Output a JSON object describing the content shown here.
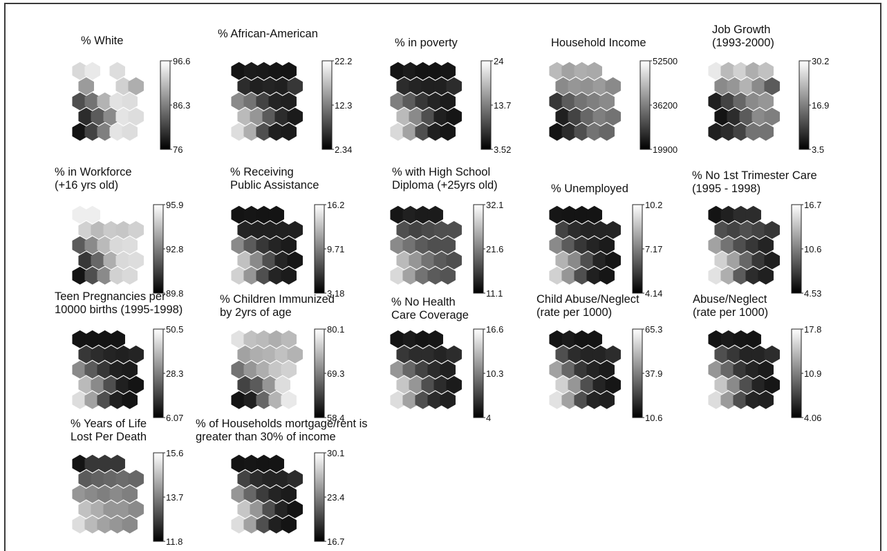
{
  "chart_data": [
    {
      "type": "heatmap",
      "title": "% White",
      "colorbar": {
        "max": "96.6",
        "mid": "86.3",
        "min": "76"
      },
      "values": [
        [
          0.88,
          0.95,
          null,
          0.9,
          null
        ],
        [
          0.62,
          null,
          null,
          0.85,
          0.7
        ],
        [
          0.3,
          0.45,
          0.72,
          0.92,
          0.9
        ],
        [
          0.15,
          0.35,
          0.55,
          0.93,
          0.9
        ],
        [
          0.05,
          0.25,
          0.5,
          0.93,
          0.9
        ]
      ]
    },
    {
      "type": "heatmap",
      "title": "% African-American",
      "colorbar": {
        "max": "22.2",
        "mid": "12.3",
        "min": "2.34"
      },
      "values": [
        [
          0.05,
          0.08,
          0.07,
          0.06,
          0.05
        ],
        [
          0.15,
          0.1,
          0.12,
          0.1,
          0.2
        ],
        [
          0.55,
          0.45,
          0.25,
          0.12,
          0.1
        ],
        [
          0.75,
          0.6,
          0.35,
          0.15,
          0.08
        ],
        [
          0.9,
          0.7,
          0.3,
          0.1,
          0.08
        ]
      ]
    },
    {
      "type": "heatmap",
      "title": "% in poverty",
      "colorbar": {
        "max": "24",
        "mid": "13.7",
        "min": "3.52"
      },
      "values": [
        [
          0.05,
          0.08,
          0.05,
          0.05,
          0.06
        ],
        [
          0.15,
          0.12,
          0.1,
          0.1,
          0.15
        ],
        [
          0.5,
          0.35,
          0.2,
          0.12,
          0.08
        ],
        [
          0.75,
          0.55,
          0.3,
          0.1,
          0.06
        ],
        [
          0.88,
          0.65,
          0.3,
          0.1,
          0.06
        ]
      ]
    },
    {
      "type": "heatmap",
      "title": "Household Income",
      "colorbar": {
        "max": "52500",
        "mid": "36200",
        "min": "19900"
      },
      "values": [
        [
          0.75,
          0.65,
          0.7,
          0.68,
          null
        ],
        [
          0.55,
          0.6,
          0.58,
          0.62,
          0.55
        ],
        [
          0.2,
          0.35,
          0.45,
          0.5,
          0.55
        ],
        [
          0.1,
          0.25,
          0.4,
          0.5,
          0.45
        ],
        [
          0.05,
          0.15,
          0.3,
          0.45,
          0.4
        ]
      ]
    },
    {
      "type": "heatmap",
      "title": "Job Growth\n(1993-2000)",
      "colorbar": {
        "max": "30.2",
        "mid": "16.9",
        "min": "3.5"
      },
      "values": [
        [
          0.95,
          0.75,
          0.85,
          0.7,
          0.78
        ],
        [
          0.55,
          0.6,
          0.72,
          0.55,
          0.35
        ],
        [
          0.1,
          0.25,
          0.4,
          0.55,
          0.6
        ],
        [
          0.05,
          0.15,
          0.35,
          0.55,
          0.5
        ],
        [
          0.1,
          0.15,
          0.25,
          0.45,
          0.45
        ]
      ]
    },
    {
      "type": "heatmap",
      "title": "% in Workforce\n(+16 yrs old)",
      "colorbar": {
        "max": "95.9",
        "mid": "92.8",
        "min": "89.8"
      },
      "values": [
        [
          0.97,
          0.97,
          null,
          null,
          null
        ],
        [
          0.85,
          0.75,
          0.82,
          0.8,
          0.85
        ],
        [
          0.35,
          0.55,
          0.75,
          0.88,
          0.9
        ],
        [
          0.2,
          0.4,
          0.7,
          0.88,
          0.9
        ],
        [
          0.05,
          0.3,
          0.55,
          0.85,
          0.88
        ]
      ]
    },
    {
      "type": "heatmap",
      "title": "% Receiving\nPublic Assistance",
      "colorbar": {
        "max": "16.2",
        "mid": "9.71",
        "min": "3.18"
      },
      "values": [
        [
          0.05,
          0.06,
          0.05,
          0.05,
          null
        ],
        [
          0.12,
          0.1,
          0.1,
          0.1,
          0.1
        ],
        [
          0.55,
          0.35,
          0.2,
          0.12,
          0.08
        ],
        [
          0.78,
          0.55,
          0.3,
          0.12,
          0.06
        ],
        [
          0.85,
          0.6,
          0.3,
          0.12,
          0.08
        ]
      ]
    },
    {
      "type": "heatmap",
      "title": "% with High School\nDiploma (+25yrs old)",
      "colorbar": {
        "max": "32.1",
        "mid": "21.6",
        "min": "11.1"
      },
      "values": [
        [
          0.06,
          0.1,
          0.08,
          0.08,
          null
        ],
        [
          0.3,
          0.25,
          0.28,
          0.3,
          0.3
        ],
        [
          0.55,
          0.45,
          0.35,
          0.3,
          0.3
        ],
        [
          0.75,
          0.6,
          0.45,
          0.35,
          0.3
        ],
        [
          0.88,
          0.65,
          0.45,
          0.35,
          0.32
        ]
      ]
    },
    {
      "type": "heatmap",
      "title": "% Unemployed",
      "colorbar": {
        "max": "10.2",
        "mid": "7.17",
        "min": "4.14"
      },
      "values": [
        [
          0.06,
          0.05,
          0.05,
          0.05,
          null
        ],
        [
          0.25,
          0.15,
          0.12,
          0.12,
          0.12
        ],
        [
          0.55,
          0.35,
          0.2,
          0.12,
          0.08
        ],
        [
          0.72,
          0.55,
          0.3,
          0.12,
          0.06
        ],
        [
          0.85,
          0.6,
          0.3,
          0.1,
          0.06
        ]
      ]
    },
    {
      "type": "heatmap",
      "title": "% No 1st Trimester Care\n(1995 - 1998)",
      "colorbar": {
        "max": "16.7",
        "mid": "10.6",
        "min": "4.53"
      },
      "values": [
        [
          0.05,
          0.1,
          0.15,
          0.15,
          null
        ],
        [
          0.3,
          0.25,
          0.3,
          0.25,
          0.2
        ],
        [
          0.65,
          0.45,
          0.3,
          0.2,
          0.12
        ],
        [
          0.85,
          0.65,
          0.4,
          0.2,
          0.1
        ],
        [
          0.92,
          0.7,
          0.35,
          0.15,
          0.1
        ]
      ]
    },
    {
      "type": "heatmap",
      "title": "Teen Pregnancies per\n10000 births (1995-1998)",
      "colorbar": {
        "max": "50.5",
        "mid": "28.3",
        "min": "6.07"
      },
      "values": [
        [
          0.05,
          0.05,
          0.05,
          0.05,
          null
        ],
        [
          0.2,
          0.15,
          0.12,
          0.1,
          0.12
        ],
        [
          0.55,
          0.35,
          0.2,
          0.1,
          0.08
        ],
        [
          0.75,
          0.55,
          0.3,
          0.1,
          0.05
        ],
        [
          0.9,
          0.65,
          0.3,
          0.1,
          0.05
        ]
      ]
    },
    {
      "type": "heatmap",
      "title": "% Children Immunized\nby 2yrs of age",
      "colorbar": {
        "max": "80.1",
        "mid": "69.3",
        "min": "58.4"
      },
      "values": [
        [
          0.92,
          0.78,
          0.75,
          0.7,
          0.75
        ],
        [
          0.65,
          0.7,
          0.72,
          0.78,
          0.72
        ],
        [
          0.45,
          0.6,
          0.7,
          0.8,
          0.85
        ],
        [
          0.25,
          0.35,
          0.6,
          0.9,
          null
        ],
        [
          0.05,
          0.1,
          0.4,
          0.72,
          0.95
        ]
      ]
    },
    {
      "type": "heatmap",
      "title": "% No Health\nCare Coverage",
      "colorbar": {
        "max": "16.6",
        "mid": "10.3",
        "min": "4"
      },
      "values": [
        [
          0.05,
          0.08,
          0.05,
          0.06,
          null
        ],
        [
          0.2,
          0.15,
          0.15,
          0.12,
          0.15
        ],
        [
          0.6,
          0.4,
          0.25,
          0.15,
          0.1
        ],
        [
          0.8,
          0.6,
          0.3,
          0.15,
          0.08
        ],
        [
          0.9,
          0.65,
          0.3,
          0.15,
          0.1
        ]
      ]
    },
    {
      "type": "heatmap",
      "title": "Child Abuse/Neglect\n(rate per 1000)",
      "colorbar": {
        "max": "65.3",
        "mid": "37.9",
        "min": "10.6"
      },
      "values": [
        [
          0.05,
          0.08,
          0.05,
          0.05,
          null
        ],
        [
          0.3,
          0.15,
          0.12,
          0.12,
          0.15
        ],
        [
          0.65,
          0.4,
          0.2,
          0.12,
          0.08
        ],
        [
          0.85,
          0.6,
          0.3,
          0.12,
          0.06
        ],
        [
          0.92,
          0.65,
          0.3,
          0.12,
          0.1
        ]
      ]
    },
    {
      "type": "heatmap",
      "title": "Abuse/Neglect\n(rate per 1000)",
      "colorbar": {
        "max": "17.8",
        "mid": "10.9",
        "min": "4.06"
      },
      "values": [
        [
          0.05,
          0.08,
          0.06,
          0.05,
          null
        ],
        [
          0.3,
          0.2,
          0.12,
          0.12,
          0.15
        ],
        [
          0.6,
          0.4,
          0.2,
          0.12,
          0.08
        ],
        [
          0.8,
          0.55,
          0.3,
          0.12,
          0.06
        ],
        [
          0.9,
          0.62,
          0.3,
          0.12,
          0.1
        ]
      ]
    },
    {
      "type": "heatmap",
      "title": "% Years of Life\nLost Per Death",
      "colorbar": {
        "max": "15.6",
        "mid": "13.7",
        "min": "11.8"
      },
      "values": [
        [
          0.05,
          0.2,
          0.2,
          0.2,
          null
        ],
        [
          0.35,
          0.38,
          0.4,
          0.42,
          0.4
        ],
        [
          0.6,
          0.55,
          0.5,
          0.55,
          0.5
        ],
        [
          0.78,
          0.7,
          0.6,
          0.6,
          0.55
        ],
        [
          0.9,
          0.75,
          0.65,
          0.6,
          0.55
        ]
      ]
    },
    {
      "type": "heatmap",
      "title": "% of Households mortgage/rent is\ngreater than 30% of income",
      "colorbar": {
        "max": "30.1",
        "mid": "23.4",
        "min": "16.7"
      },
      "values": [
        [
          0.05,
          0.06,
          0.05,
          0.05,
          null
        ],
        [
          0.25,
          0.15,
          0.12,
          0.12,
          0.15
        ],
        [
          0.6,
          0.4,
          0.22,
          0.12,
          0.08
        ],
        [
          0.8,
          0.6,
          0.3,
          0.12,
          0.05
        ],
        [
          0.9,
          0.65,
          0.3,
          0.1,
          0.05
        ]
      ]
    }
  ]
}
